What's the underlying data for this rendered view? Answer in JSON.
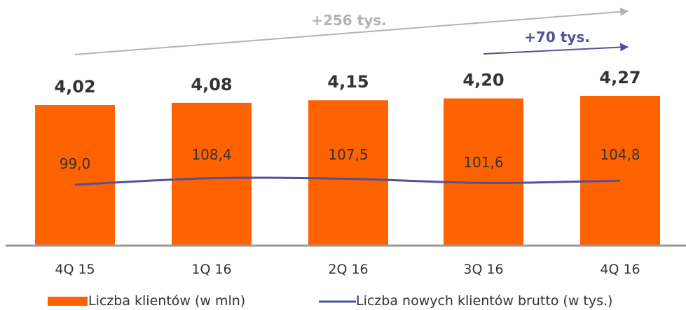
{
  "chart_data": {
    "type": "bar",
    "categories": [
      "4Q 15",
      "1Q 16",
      "2Q 16",
      "3Q 16",
      "4Q 16"
    ],
    "series": [
      {
        "name": "Liczba klientów (w mln)",
        "type": "bar",
        "values": [
          4.02,
          4.08,
          4.15,
          4.2,
          4.27
        ],
        "labels": [
          "4,02",
          "4,08",
          "4,15",
          "4,20",
          "4,27"
        ],
        "color": "#ff6200"
      },
      {
        "name": "Liczba nowych klientów brutto (w tys.)",
        "type": "line",
        "values": [
          99.0,
          108.4,
          107.5,
          101.6,
          104.8
        ],
        "labels": [
          "99,0",
          "108,4",
          "107,5",
          "101,6",
          "104,8"
        ],
        "color": "#525199"
      }
    ],
    "annotations": [
      {
        "text": "+256 tys.",
        "from": "4Q 15",
        "to": "4Q 16",
        "color": "#b3b3b3"
      },
      {
        "text": "+70 tys.",
        "from": "3Q 16",
        "to": "4Q 16",
        "color": "#525199"
      }
    ],
    "colors": {
      "bar": "#ff6200",
      "line": "#525199",
      "axis": "#999999",
      "annotation_gray": "#b3b3b3"
    }
  }
}
